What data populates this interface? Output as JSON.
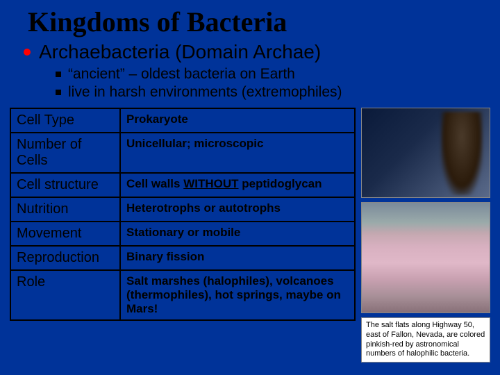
{
  "title": "Kingdoms of Bacteria",
  "subtitle": "Archaebacteria (Domain Archae)",
  "sub_bullets": [
    "“ancient” – oldest bacteria on Earth",
    "live in harsh environments (extremophiles)"
  ],
  "table": {
    "rows": [
      {
        "label": "Cell Type",
        "value": "Prokaryote"
      },
      {
        "label": "Number of Cells",
        "value": "Unicellular; microscopic"
      },
      {
        "label": "Cell structure",
        "value_html": "Cell walls <span class=\"underline\">WITHOUT</span> peptidoglycan"
      },
      {
        "label": "Nutrition",
        "value": "Heterotrophs or autotrophs"
      },
      {
        "label": "Movement",
        "value": "Stationary or mobile"
      },
      {
        "label": "Reproduction",
        "value": "Binary fission"
      },
      {
        "label": "Role",
        "value": "Salt marshes (halophiles), volcanoes (thermophiles), hot springs, maybe on Mars!"
      }
    ]
  },
  "caption": "The salt flats along Highway 50, east of Fallon, Nevada, are colored pinkish-red by astronomical numbers of halophilic bacteria."
}
